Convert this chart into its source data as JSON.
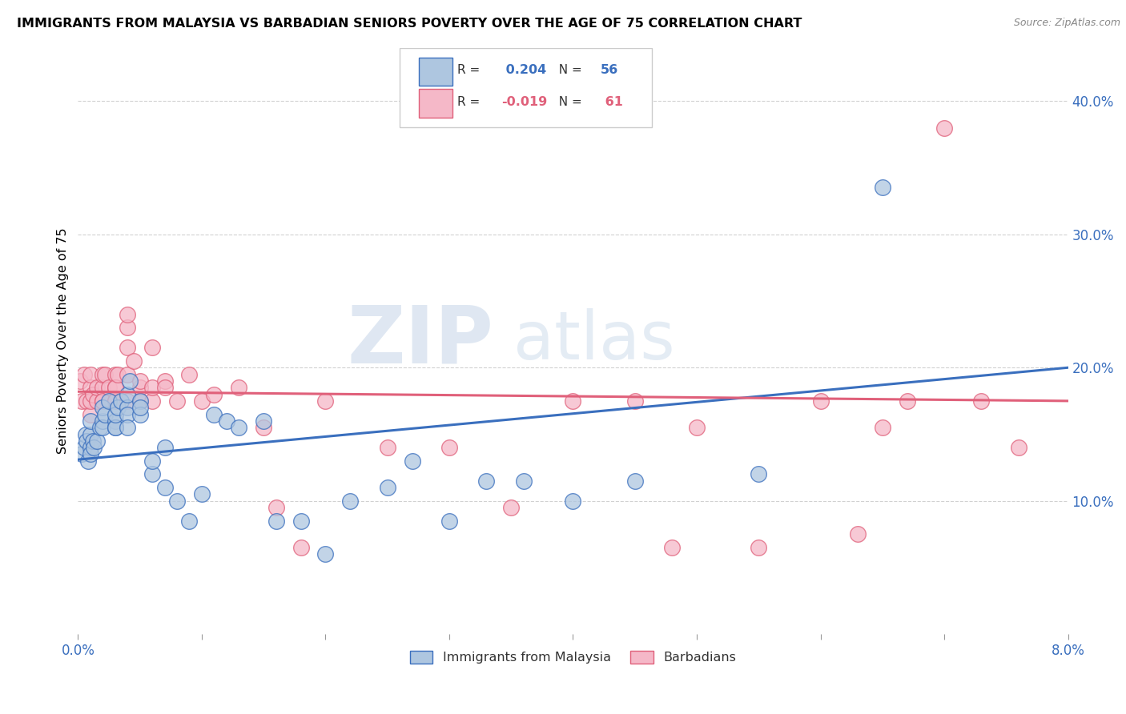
{
  "title": "IMMIGRANTS FROM MALAYSIA VS BARBADIAN SENIORS POVERTY OVER THE AGE OF 75 CORRELATION CHART",
  "source": "Source: ZipAtlas.com",
  "ylabel": "Seniors Poverty Over the Age of 75",
  "xlabel_blue": "Immigrants from Malaysia",
  "xlabel_pink": "Barbadians",
  "xlim": [
    0.0,
    0.08
  ],
  "ylim": [
    0.0,
    0.44
  ],
  "blue_R": 0.204,
  "blue_N": 56,
  "pink_R": -0.019,
  "pink_N": 61,
  "blue_color": "#aec6e0",
  "pink_color": "#f5b8c8",
  "blue_line_color": "#3a6fbe",
  "pink_line_color": "#e0607a",
  "watermark_zip": "ZIP",
  "watermark_atlas": "atlas",
  "blue_scatter_x": [
    0.0003,
    0.0005,
    0.0006,
    0.0007,
    0.0008,
    0.001,
    0.001,
    0.001,
    0.001,
    0.0012,
    0.0013,
    0.0015,
    0.0018,
    0.002,
    0.002,
    0.002,
    0.0022,
    0.0025,
    0.003,
    0.003,
    0.003,
    0.003,
    0.0032,
    0.0035,
    0.004,
    0.004,
    0.004,
    0.004,
    0.0042,
    0.005,
    0.005,
    0.005,
    0.006,
    0.006,
    0.007,
    0.007,
    0.008,
    0.009,
    0.01,
    0.011,
    0.012,
    0.013,
    0.015,
    0.016,
    0.018,
    0.02,
    0.022,
    0.025,
    0.027,
    0.03,
    0.033,
    0.036,
    0.04,
    0.045,
    0.055,
    0.065
  ],
  "blue_scatter_y": [
    0.135,
    0.14,
    0.15,
    0.145,
    0.13,
    0.14,
    0.135,
    0.15,
    0.16,
    0.145,
    0.14,
    0.145,
    0.155,
    0.16,
    0.155,
    0.17,
    0.165,
    0.175,
    0.16,
    0.155,
    0.155,
    0.165,
    0.17,
    0.175,
    0.17,
    0.165,
    0.155,
    0.18,
    0.19,
    0.175,
    0.165,
    0.17,
    0.12,
    0.13,
    0.14,
    0.11,
    0.1,
    0.085,
    0.105,
    0.165,
    0.16,
    0.155,
    0.16,
    0.085,
    0.085,
    0.06,
    0.1,
    0.11,
    0.13,
    0.085,
    0.115,
    0.115,
    0.1,
    0.115,
    0.12,
    0.335
  ],
  "pink_scatter_x": [
    0.0002,
    0.0003,
    0.0005,
    0.0007,
    0.001,
    0.001,
    0.001,
    0.001,
    0.0012,
    0.0015,
    0.0015,
    0.002,
    0.002,
    0.002,
    0.002,
    0.0022,
    0.0025,
    0.003,
    0.003,
    0.003,
    0.003,
    0.003,
    0.0032,
    0.004,
    0.004,
    0.004,
    0.004,
    0.004,
    0.0045,
    0.005,
    0.005,
    0.005,
    0.006,
    0.006,
    0.006,
    0.007,
    0.007,
    0.008,
    0.009,
    0.01,
    0.011,
    0.013,
    0.015,
    0.016,
    0.018,
    0.02,
    0.025,
    0.03,
    0.035,
    0.04,
    0.045,
    0.048,
    0.05,
    0.055,
    0.06,
    0.063,
    0.065,
    0.067,
    0.07,
    0.073,
    0.076
  ],
  "pink_scatter_y": [
    0.19,
    0.175,
    0.195,
    0.175,
    0.185,
    0.165,
    0.175,
    0.195,
    0.18,
    0.175,
    0.185,
    0.175,
    0.185,
    0.175,
    0.195,
    0.195,
    0.185,
    0.175,
    0.195,
    0.185,
    0.175,
    0.185,
    0.195,
    0.175,
    0.23,
    0.24,
    0.195,
    0.215,
    0.205,
    0.185,
    0.19,
    0.175,
    0.175,
    0.185,
    0.215,
    0.19,
    0.185,
    0.175,
    0.195,
    0.175,
    0.18,
    0.185,
    0.155,
    0.095,
    0.065,
    0.175,
    0.14,
    0.14,
    0.095,
    0.175,
    0.175,
    0.065,
    0.155,
    0.065,
    0.175,
    0.075,
    0.155,
    0.175,
    0.38,
    0.175,
    0.14
  ],
  "blue_line_x0": 0.0,
  "blue_line_y0": 0.131,
  "blue_line_x1": 0.08,
  "blue_line_y1": 0.2,
  "pink_line_x0": 0.0,
  "pink_line_y0": 0.182,
  "pink_line_x1": 0.08,
  "pink_line_y1": 0.175
}
